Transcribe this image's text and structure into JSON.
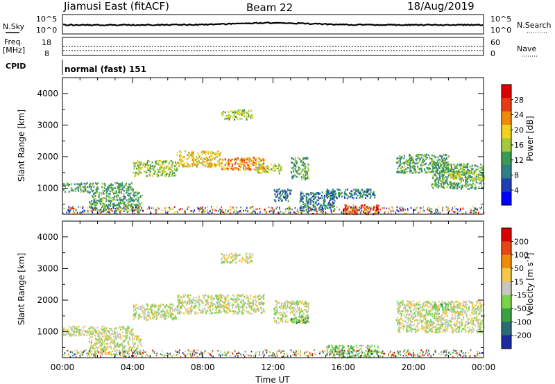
{
  "header": {
    "station": "Jiamusi East (fitACF)",
    "beam": "Beam 22",
    "date": "18/Aug/2019"
  },
  "noise_panel": {
    "left_label": "N.Sky",
    "right_label": "N.Search",
    "left_ticks": [
      "10^5",
      "10^0"
    ],
    "right_ticks": [
      "10^5",
      "10^0"
    ]
  },
  "freq_panel": {
    "left_label_line1": "Freq.",
    "left_label_line2": "[MHz]",
    "right_label": "Nave",
    "left_ticks": [
      "18",
      "8"
    ],
    "right_ticks": [
      "60",
      "0"
    ]
  },
  "cpid": {
    "label": "CPID",
    "value": "normal (fast) 151"
  },
  "chart_data": [
    {
      "type": "heatmap",
      "name": "power",
      "ylabel": "Slant Range [km]",
      "ylim": [
        180,
        4500
      ],
      "yticks": [
        "1000",
        "2000",
        "3000",
        "4000"
      ],
      "xlim_hours": [
        0,
        24
      ],
      "colorbar_label": "Power [dB]",
      "colorbar_ticks": [
        "28",
        "24",
        "20",
        "16",
        "12",
        "8",
        "4"
      ],
      "colors": [
        "#0000ff",
        "#1f3fb4",
        "#2e7f8a",
        "#3a9a50",
        "#a6c83c",
        "#f2d21e",
        "#f08a0a",
        "#e63c14",
        "#dc0000"
      ],
      "regions": [
        {
          "t0": 0.0,
          "t1": 4.0,
          "r0": 900,
          "r1": 1200,
          "level": 3
        },
        {
          "t0": 1.5,
          "t1": 4.5,
          "r0": 300,
          "r1": 900,
          "level": 3
        },
        {
          "t0": 4.0,
          "t1": 6.5,
          "r0": 1400,
          "r1": 1900,
          "level": 4
        },
        {
          "t0": 6.5,
          "t1": 9.0,
          "r0": 1700,
          "r1": 2200,
          "level": 5
        },
        {
          "t0": 9.0,
          "t1": 11.5,
          "r0": 1600,
          "r1": 2000,
          "level": 6
        },
        {
          "t0": 11.0,
          "t1": 12.5,
          "r0": 1500,
          "r1": 1800,
          "level": 4
        },
        {
          "t0": 9.0,
          "t1": 10.8,
          "r0": 3200,
          "r1": 3500,
          "level": 4
        },
        {
          "t0": 12.0,
          "t1": 13.0,
          "r0": 600,
          "r1": 1000,
          "level": 2
        },
        {
          "t0": 13.0,
          "t1": 14.0,
          "r0": 1300,
          "r1": 2000,
          "level": 3
        },
        {
          "t0": 13.5,
          "t1": 15.5,
          "r0": 300,
          "r1": 900,
          "level": 2
        },
        {
          "t0": 15.0,
          "t1": 17.8,
          "r0": 700,
          "r1": 1000,
          "level": 2
        },
        {
          "t0": 16.0,
          "t1": 18.0,
          "r0": 200,
          "r1": 500,
          "level": 7
        },
        {
          "t0": 19.0,
          "t1": 22.0,
          "r0": 1500,
          "r1": 2100,
          "level": 3
        },
        {
          "t0": 21.0,
          "t1": 24.0,
          "r0": 1000,
          "r1": 1800,
          "level": 3
        },
        {
          "t0": 22.0,
          "t1": 24.0,
          "r0": 1300,
          "r1": 1600,
          "level": 4
        }
      ]
    },
    {
      "type": "heatmap",
      "name": "velocity",
      "ylabel": "Slant Range [km]",
      "ylim": [
        180,
        4500
      ],
      "yticks": [
        "1000",
        "2000",
        "3000",
        "4000"
      ],
      "xlabel": "Time UT",
      "xticks": [
        "00:00",
        "04:00",
        "08:00",
        "12:00",
        "16:00",
        "20:00",
        "00:00"
      ],
      "xlim_hours": [
        0,
        24
      ],
      "colorbar_label": "Velocity [m s^-1]",
      "colorbar_ticks": [
        "200",
        "100",
        "50",
        "15",
        "-15",
        "-50",
        "-100",
        "-200"
      ],
      "colors": [
        "#1a2aa0",
        "#2c6a78",
        "#3aa040",
        "#7cd34a",
        "#c8c8be",
        "#f5c84a",
        "#f08a0a",
        "#e64614",
        "#dc0000"
      ],
      "regions": [
        {
          "t0": 0.0,
          "t1": 4.0,
          "r0": 900,
          "r1": 1200,
          "level": 4
        },
        {
          "t0": 1.5,
          "t1": 4.5,
          "r0": 300,
          "r1": 900,
          "level": 4
        },
        {
          "t0": 4.0,
          "t1": 6.5,
          "r0": 1400,
          "r1": 1900,
          "level": 4
        },
        {
          "t0": 6.5,
          "t1": 11.5,
          "r0": 1600,
          "r1": 2200,
          "level": 4
        },
        {
          "t0": 9.0,
          "t1": 10.8,
          "r0": 3200,
          "r1": 3500,
          "level": 4
        },
        {
          "t0": 12.0,
          "t1": 14.0,
          "r0": 1300,
          "r1": 2000,
          "level": 4
        },
        {
          "t0": 13.0,
          "t1": 14.0,
          "r0": 1300,
          "r1": 1500,
          "level": 2
        },
        {
          "t0": 15.0,
          "t1": 18.0,
          "r0": 200,
          "r1": 600,
          "level": 3
        },
        {
          "t0": 19.0,
          "t1": 24.0,
          "r0": 1000,
          "r1": 2000,
          "level": 4
        },
        {
          "t0": 21.0,
          "t1": 22.0,
          "r0": 1700,
          "r1": 1900,
          "level": 3
        }
      ]
    }
  ]
}
